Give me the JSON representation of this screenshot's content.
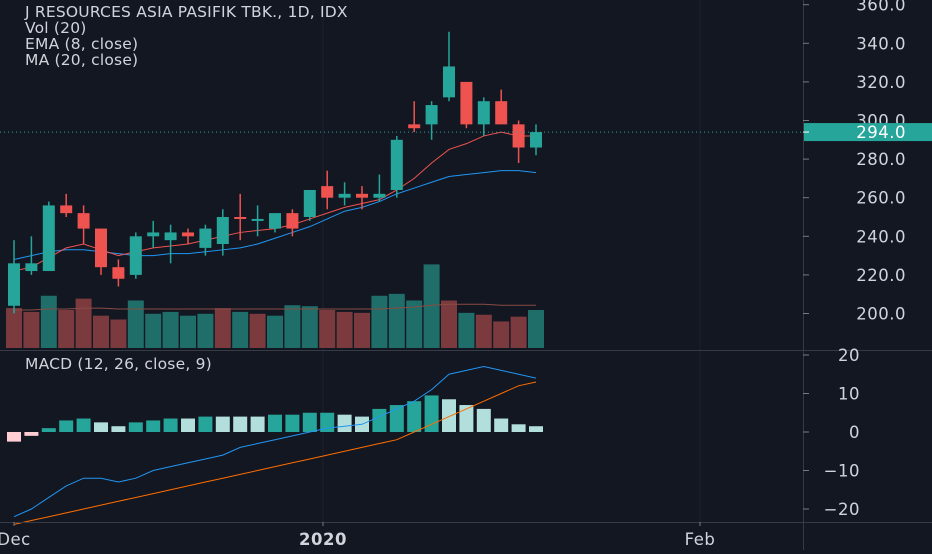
{
  "legend": {
    "title": "J RESOURCES ASIA PASIFIK TBK., 1D, IDX",
    "vol": "Vol (20)",
    "ema": "EMA (8, close)",
    "ma": "MA (20, close)"
  },
  "macd_title": "MACD (12, 26, close, 9)",
  "colors": {
    "background": "#131722",
    "up": "#26a69a",
    "down": "#ef5350",
    "up_volume": "#1f6e6a",
    "down_volume": "#7a3a3e",
    "hist_up_strong": "#26a69a",
    "hist_up_weak": "#b2dfdb",
    "hist_down_weak": "#ffcdd2",
    "macd_line": "#2196f3",
    "signal_line": "#ff6d00",
    "ema_line": "#ef5350",
    "ma_line": "#2196f3",
    "last_price_bg": "#26a69a"
  },
  "chart_data": [
    {
      "type": "candlestick",
      "title": "J RESOURCES ASIA PASIFIK TBK., 1D, IDX",
      "ylim": [
        180,
        362
      ],
      "y_ticks": [
        "200.0",
        "220.0",
        "240.0",
        "260.0",
        "280.0",
        "300.0",
        "320.0",
        "340.0",
        "360.0"
      ],
      "y_tick_values": [
        200,
        220,
        240,
        260,
        280,
        300,
        320,
        340,
        360
      ],
      "last_price_label": "294.0",
      "last_price": 294,
      "x_labels": [
        "Dec",
        "2020",
        "Feb"
      ],
      "candles": [
        {
          "o": 204,
          "h": 238,
          "l": 200,
          "c": 226
        },
        {
          "o": 222,
          "h": 240,
          "l": 220,
          "c": 226
        },
        {
          "o": 222,
          "h": 258,
          "l": 222,
          "c": 256
        },
        {
          "o": 256,
          "h": 262,
          "l": 250,
          "c": 252
        },
        {
          "o": 252,
          "h": 256,
          "l": 236,
          "c": 244
        },
        {
          "o": 244,
          "h": 244,
          "l": 220,
          "c": 224
        },
        {
          "o": 224,
          "h": 228,
          "l": 214,
          "c": 218
        },
        {
          "o": 220,
          "h": 242,
          "l": 218,
          "c": 240
        },
        {
          "o": 240,
          "h": 248,
          "l": 234,
          "c": 242
        },
        {
          "o": 238,
          "h": 246,
          "l": 226,
          "c": 242
        },
        {
          "o": 242,
          "h": 244,
          "l": 236,
          "c": 240
        },
        {
          "o": 234,
          "h": 246,
          "l": 230,
          "c": 244
        },
        {
          "o": 236,
          "h": 254,
          "l": 230,
          "c": 250
        },
        {
          "o": 250,
          "h": 262,
          "l": 238,
          "c": 249
        },
        {
          "o": 248,
          "h": 256,
          "l": 240,
          "c": 249
        },
        {
          "o": 244,
          "h": 252,
          "l": 242,
          "c": 252
        },
        {
          "o": 252,
          "h": 254,
          "l": 240,
          "c": 244
        },
        {
          "o": 250,
          "h": 264,
          "l": 248,
          "c": 264
        },
        {
          "o": 266,
          "h": 274,
          "l": 254,
          "c": 260
        },
        {
          "o": 260,
          "h": 268,
          "l": 256,
          "c": 262
        },
        {
          "o": 262,
          "h": 266,
          "l": 254,
          "c": 260
        },
        {
          "o": 260,
          "h": 272,
          "l": 258,
          "c": 262
        },
        {
          "o": 264,
          "h": 292,
          "l": 260,
          "c": 290
        },
        {
          "o": 298,
          "h": 310,
          "l": 294,
          "c": 296
        },
        {
          "o": 298,
          "h": 310,
          "l": 290,
          "c": 308
        },
        {
          "o": 312,
          "h": 346,
          "l": 310,
          "c": 328
        },
        {
          "o": 320,
          "h": 320,
          "l": 296,
          "c": 298
        },
        {
          "o": 298,
          "h": 312,
          "l": 292,
          "c": 310
        },
        {
          "o": 310,
          "h": 316,
          "l": 298,
          "c": 298
        },
        {
          "o": 298,
          "h": 300,
          "l": 278,
          "c": 286
        },
        {
          "o": 286,
          "h": 298,
          "l": 282,
          "c": 294
        }
      ],
      "ema": [
        222,
        224,
        229,
        234,
        236,
        233,
        230,
        232,
        234,
        235,
        236,
        238,
        240,
        242,
        243,
        244,
        246,
        249,
        252,
        255,
        257,
        259,
        264,
        270,
        278,
        285,
        288,
        292,
        294,
        292,
        292
      ],
      "ma": [
        228,
        230,
        232,
        233,
        233,
        232,
        231,
        230,
        230,
        231,
        231,
        232,
        233,
        234,
        236,
        239,
        242,
        245,
        249,
        253,
        255,
        258,
        262,
        265,
        268,
        271,
        272,
        273,
        274,
        274,
        273
      ],
      "volume": [
        {
          "v": 42,
          "dir": "down"
        },
        {
          "v": 38,
          "dir": "down"
        },
        {
          "v": 55,
          "dir": "up"
        },
        {
          "v": 40,
          "dir": "down"
        },
        {
          "v": 52,
          "dir": "down"
        },
        {
          "v": 34,
          "dir": "down"
        },
        {
          "v": 30,
          "dir": "down"
        },
        {
          "v": 50,
          "dir": "up"
        },
        {
          "v": 36,
          "dir": "up"
        },
        {
          "v": 38,
          "dir": "up"
        },
        {
          "v": 34,
          "dir": "up"
        },
        {
          "v": 36,
          "dir": "up"
        },
        {
          "v": 42,
          "dir": "down"
        },
        {
          "v": 38,
          "dir": "up"
        },
        {
          "v": 36,
          "dir": "down"
        },
        {
          "v": 34,
          "dir": "up"
        },
        {
          "v": 45,
          "dir": "up"
        },
        {
          "v": 44,
          "dir": "up"
        },
        {
          "v": 40,
          "dir": "down"
        },
        {
          "v": 38,
          "dir": "down"
        },
        {
          "v": 37,
          "dir": "down"
        },
        {
          "v": 55,
          "dir": "up"
        },
        {
          "v": 57,
          "dir": "up"
        },
        {
          "v": 50,
          "dir": "up"
        },
        {
          "v": 88,
          "dir": "up"
        },
        {
          "v": 50,
          "dir": "down"
        },
        {
          "v": 37,
          "dir": "up"
        },
        {
          "v": 35,
          "dir": "down"
        },
        {
          "v": 28,
          "dir": "down"
        },
        {
          "v": 33,
          "dir": "down"
        },
        {
          "v": 40,
          "dir": "up"
        }
      ],
      "volume_ma": [
        40,
        40,
        41,
        41,
        42,
        42,
        41,
        41,
        41,
        41,
        41,
        41,
        41,
        41,
        41,
        41,
        41,
        41,
        41,
        41,
        41,
        41,
        42,
        43,
        45,
        46,
        46,
        46,
        45,
        45,
        45
      ]
    },
    {
      "type": "macd",
      "title": "MACD (12, 26, close, 9)",
      "ylim": [
        -25,
        22
      ],
      "y_ticks": [
        "−20",
        "−10",
        "0",
        "10",
        "20"
      ],
      "y_tick_values": [
        -20,
        -10,
        0,
        10,
        20
      ],
      "histogram": [
        -2.5,
        -1,
        1,
        3,
        3.5,
        2.5,
        1.5,
        2.5,
        3,
        3.5,
        3.5,
        4,
        4,
        4,
        4,
        4.5,
        4.5,
        5,
        5,
        4.5,
        4,
        6,
        7,
        8,
        9.5,
        8.5,
        7,
        6,
        3.5,
        2,
        1.5
      ],
      "hist_colors": [
        "down_weak",
        "down_weak",
        "up_strong",
        "up_strong",
        "up_strong",
        "up_weak",
        "up_weak",
        "up_strong",
        "up_strong",
        "up_strong",
        "up_weak",
        "up_strong",
        "up_weak",
        "up_weak",
        "up_weak",
        "up_strong",
        "up_strong",
        "up_strong",
        "up_strong",
        "up_weak",
        "up_weak",
        "up_strong",
        "up_strong",
        "up_strong",
        "up_strong",
        "up_weak",
        "up_weak",
        "up_weak",
        "up_weak",
        "up_weak",
        "up_weak"
      ],
      "macd": [
        -22,
        -20,
        -17,
        -14,
        -12,
        -12,
        -13,
        -12,
        -10,
        -9,
        -8,
        -7,
        -6,
        -4,
        -3,
        -2,
        -1,
        0,
        1,
        1.5,
        2,
        4,
        6,
        8,
        11,
        15,
        16,
        17,
        16,
        15,
        14
      ],
      "signal": [
        -24,
        -23,
        -22,
        -21,
        -20,
        -19,
        -18,
        -17,
        -16,
        -15,
        -14,
        -13,
        -12,
        -11,
        -10,
        -9,
        -8,
        -7,
        -6,
        -5,
        -4,
        -3,
        -2,
        0,
        2,
        4,
        6,
        8,
        10,
        12,
        13
      ]
    }
  ]
}
